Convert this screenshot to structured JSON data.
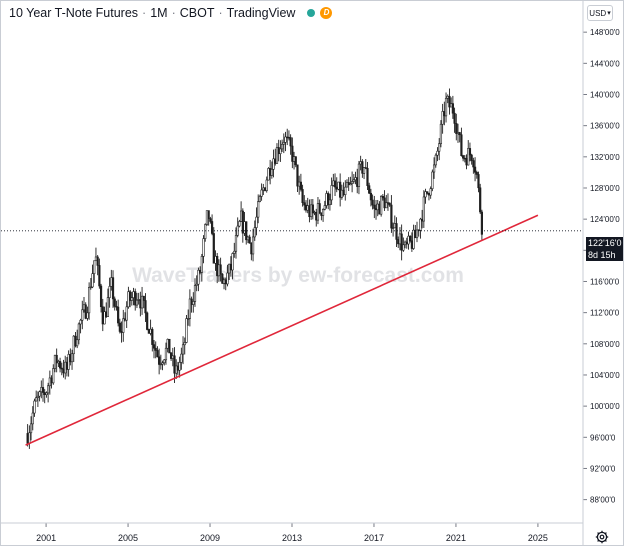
{
  "header": {
    "title": "10 Year T-Note Futures",
    "timeframe": "1M",
    "exchange": "CBOT",
    "source": "TradingView",
    "status_badge": "D",
    "separator": "·"
  },
  "currency_button": "USD",
  "watermark": "WaveTraders by ew-forecast.com",
  "last_price": {
    "label": "122'16'0",
    "countdown": "8d 15h"
  },
  "colors": {
    "trendline": "#e0273a",
    "candles": "#1e1e1e",
    "status_dot": "#26a69a",
    "badge": "#ff9800"
  },
  "chart_data": {
    "type": "candlestick",
    "title": "10 Year T-Note Futures · 1M · CBOT",
    "x_ticks": [
      "2001",
      "2005",
      "2009",
      "2013",
      "2017",
      "2021",
      "2025"
    ],
    "y_ticks": [
      "88'00'0",
      "92'00'0",
      "96'00'0",
      "100'00'0",
      "104'00'0",
      "108'00'0",
      "112'00'0",
      "116'00'0",
      "120'00'0",
      "124'00'0",
      "128'00'0",
      "132'00'0",
      "136'00'0",
      "140'00'0",
      "144'00'0",
      "148'00'0"
    ],
    "y_range": [
      85,
      152
    ],
    "x_range": [
      1998.8,
      2027.2
    ],
    "price_path": [
      [
        2000.1,
        96.5
      ],
      [
        2000.5,
        100.5
      ],
      [
        2001.0,
        102.0
      ],
      [
        2001.5,
        106.0
      ],
      [
        2002.0,
        104.5
      ],
      [
        2002.5,
        109.5
      ],
      [
        2003.0,
        113.0
      ],
      [
        2003.4,
        119.5
      ],
      [
        2003.8,
        111.0
      ],
      [
        2004.2,
        115.5
      ],
      [
        2004.6,
        109.0
      ],
      [
        2005.0,
        113.5
      ],
      [
        2005.5,
        114.5
      ],
      [
        2006.0,
        110.5
      ],
      [
        2006.5,
        106.0
      ],
      [
        2007.0,
        107.5
      ],
      [
        2007.3,
        104.0
      ],
      [
        2007.7,
        107.0
      ],
      [
        2008.0,
        113.0
      ],
      [
        2008.5,
        117.0
      ],
      [
        2008.9,
        125.0
      ],
      [
        2009.2,
        119.0
      ],
      [
        2009.6,
        115.5
      ],
      [
        2010.0,
        117.5
      ],
      [
        2010.5,
        124.0
      ],
      [
        2011.0,
        120.5
      ],
      [
        2011.5,
        127.0
      ],
      [
        2012.0,
        131.5
      ],
      [
        2012.6,
        134.5
      ],
      [
        2013.0,
        132.5
      ],
      [
        2013.5,
        126.0
      ],
      [
        2014.0,
        124.5
      ],
      [
        2014.5,
        125.5
      ],
      [
        2015.0,
        128.0
      ],
      [
        2015.5,
        127.0
      ],
      [
        2016.0,
        128.5
      ],
      [
        2016.5,
        131.0
      ],
      [
        2017.0,
        125.0
      ],
      [
        2017.5,
        126.5
      ],
      [
        2018.0,
        123.0
      ],
      [
        2018.5,
        120.0
      ],
      [
        2019.0,
        121.5
      ],
      [
        2019.5,
        126.5
      ],
      [
        2020.0,
        131.0
      ],
      [
        2020.5,
        139.0
      ],
      [
        2020.9,
        138.0
      ],
      [
        2021.3,
        132.0
      ],
      [
        2021.8,
        132.5
      ],
      [
        2022.0,
        130.0
      ],
      [
        2022.3,
        122.5
      ]
    ],
    "trendline": {
      "start": [
        2000.0,
        95.0
      ],
      "end": [
        2025.0,
        124.5
      ]
    },
    "last_price_value": 122.5
  }
}
